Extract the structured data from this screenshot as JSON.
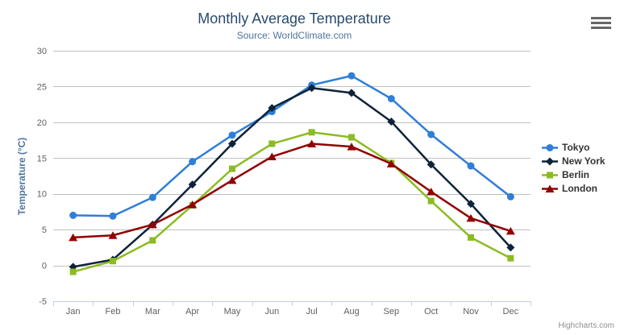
{
  "chart_data": {
    "type": "line",
    "title": "Monthly Average Temperature",
    "subtitle": "Source: WorldClimate.com",
    "ylabel": "Temperature (°C)",
    "xlabel": "",
    "categories": [
      "Jan",
      "Feb",
      "Mar",
      "Apr",
      "May",
      "Jun",
      "Jul",
      "Aug",
      "Sep",
      "Oct",
      "Nov",
      "Dec"
    ],
    "ylim": [
      -5,
      30
    ],
    "yticks": [
      -5,
      0,
      5,
      10,
      15,
      20,
      25,
      30
    ],
    "grid": true,
    "legend_position": "right",
    "series": [
      {
        "name": "Tokyo",
        "color": "#2f7ed8",
        "marker": "circle",
        "values": [
          7.0,
          6.9,
          9.5,
          14.5,
          18.2,
          21.5,
          25.2,
          26.5,
          23.3,
          18.3,
          13.9,
          9.6
        ]
      },
      {
        "name": "New York",
        "color": "#0d233a",
        "marker": "diamond",
        "values": [
          -0.2,
          0.8,
          5.7,
          11.3,
          17.0,
          22.0,
          24.8,
          24.1,
          20.1,
          14.1,
          8.6,
          2.5
        ]
      },
      {
        "name": "Berlin",
        "color": "#8bbc21",
        "marker": "square",
        "values": [
          -0.9,
          0.6,
          3.5,
          8.4,
          13.5,
          17.0,
          18.6,
          17.9,
          14.3,
          9.0,
          3.9,
          1.0
        ]
      },
      {
        "name": "London",
        "color": "#910000",
        "marker": "triangle",
        "values": [
          3.9,
          4.2,
          5.7,
          8.5,
          11.9,
          15.2,
          17.0,
          16.6,
          14.2,
          10.3,
          6.6,
          4.8
        ]
      }
    ],
    "credits": "Highcharts.com",
    "colors": {
      "title": "#274b6d",
      "subtitle": "#4d759e",
      "axis_title": "#4d759e",
      "axis_labels": "#606060",
      "gridline": "#c0c0c0",
      "axis_line": "#c0d0e0",
      "legend_text": "#333333",
      "credits_text": "#909090",
      "menu_icon": "#666666"
    }
  },
  "toolbar": {
    "menu_icon": "hamburger-icon"
  }
}
